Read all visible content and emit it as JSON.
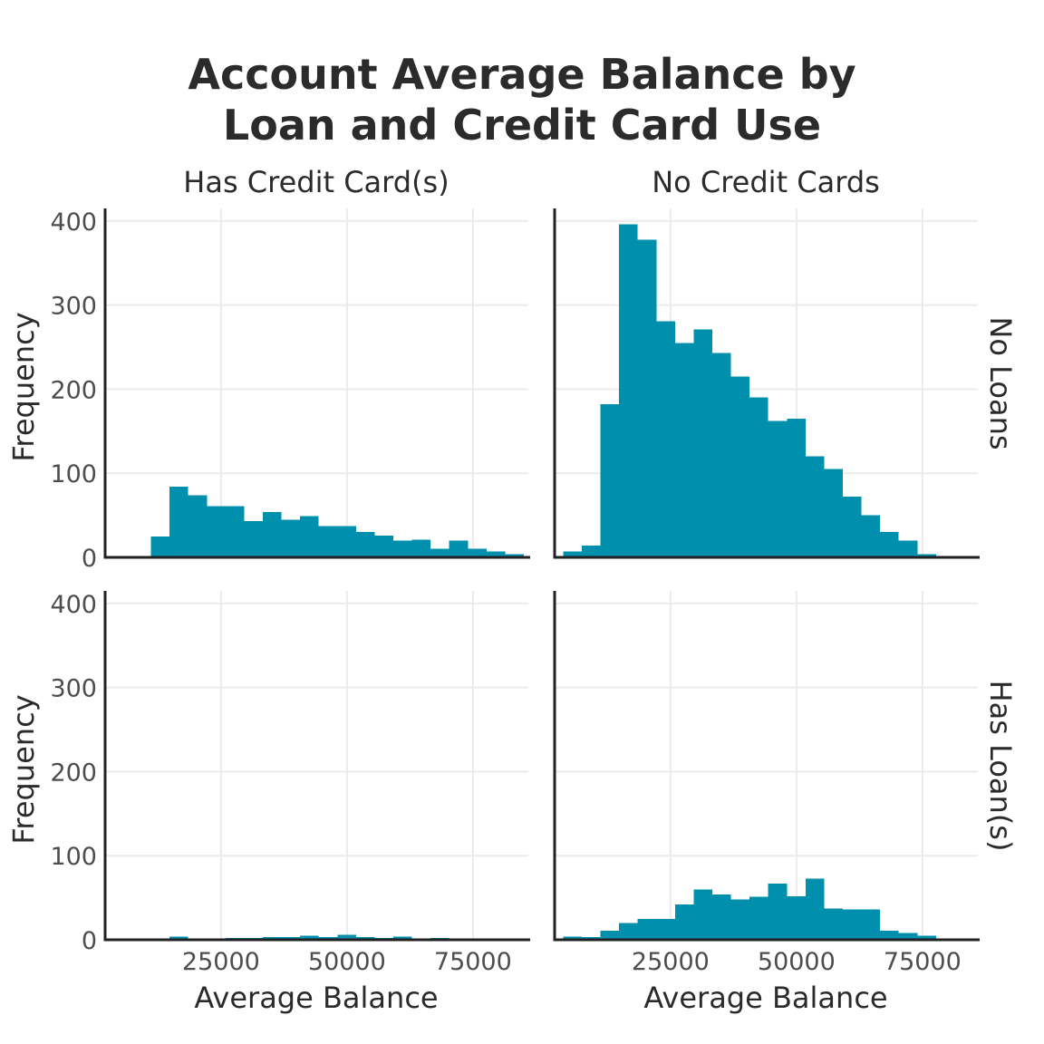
{
  "chart_data": {
    "type": "bar",
    "title_lines": [
      "Account Average Balance by",
      "Loan and Credit Card Use"
    ],
    "xlabel": "Average Balance",
    "ylabel": "Frequency",
    "col_facets": [
      "Has Credit Card(s)",
      "No Credit Cards"
    ],
    "row_facets": [
      "No Loans",
      "Has Loan(s)"
    ],
    "xlim": [
      2000,
      86000
    ],
    "ylim": [
      0,
      415
    ],
    "x_ticks": [
      25000,
      50000,
      75000
    ],
    "x_tick_labels": [
      "25000",
      "50000",
      "75000"
    ],
    "y_ticks": [
      0,
      100,
      200,
      300,
      400
    ],
    "y_tick_labels": [
      "0",
      "100",
      "200",
      "300",
      "400"
    ],
    "bin_start": 3700,
    "bin_width": 3700,
    "bar_color": "#0090ad",
    "grid": true,
    "panels": [
      {
        "row": "No Loans",
        "col": "Has Credit Card(s)",
        "counts": [
          0,
          0,
          25,
          84,
          74,
          61,
          61,
          43,
          54,
          45,
          49,
          37,
          37,
          30,
          26,
          20,
          21,
          10,
          20,
          10,
          7,
          4,
          0
        ]
      },
      {
        "row": "No Loans",
        "col": "No Credit Cards",
        "counts": [
          7,
          14,
          182,
          396,
          378,
          281,
          255,
          271,
          243,
          215,
          190,
          162,
          165,
          120,
          105,
          72,
          50,
          30,
          20,
          4,
          0,
          0,
          0
        ]
      },
      {
        "row": "Has Loan(s)",
        "col": "Has Credit Card(s)",
        "counts": [
          0,
          0,
          0,
          4,
          0,
          0,
          2,
          2,
          3,
          3,
          5,
          3,
          6,
          3,
          2,
          4,
          0,
          2,
          1,
          1,
          0,
          0,
          0
        ]
      },
      {
        "row": "Has Loan(s)",
        "col": "No Credit Cards",
        "counts": [
          4,
          3,
          11,
          20,
          25,
          25,
          42,
          60,
          54,
          48,
          51,
          67,
          52,
          73,
          37,
          36,
          36,
          11,
          8,
          5,
          0,
          0,
          0
        ]
      }
    ]
  }
}
